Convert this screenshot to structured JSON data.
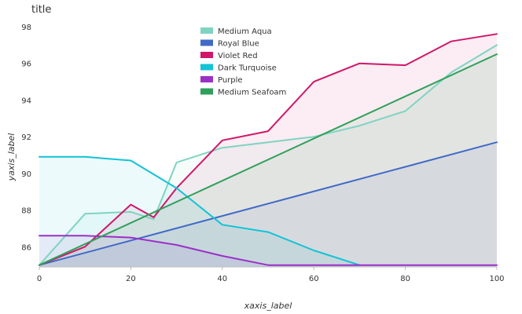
{
  "chart_data": {
    "type": "area",
    "title": "title",
    "xlabel": "xaxis_label",
    "ylabel": "yaxis_label",
    "xlim": [
      0,
      100
    ],
    "ylim": [
      84.9,
      98
    ],
    "x_ticks": [
      0,
      20,
      40,
      60,
      80,
      100
    ],
    "y_ticks": [
      86,
      88,
      90,
      92,
      94,
      96,
      98
    ],
    "grid": false,
    "legend_position": "top-center",
    "series": [
      {
        "name": "Medium Aqua",
        "color": "#7fd4c1",
        "x": [
          0,
          10,
          20,
          25,
          30,
          40,
          50,
          60,
          70,
          80,
          90,
          100
        ],
        "y": [
          85,
          87.8,
          87.9,
          87.5,
          90.6,
          91.4,
          91.7,
          92.0,
          92.6,
          93.4,
          95.5,
          97.0
        ]
      },
      {
        "name": "Royal Blue",
        "color": "#4169c7",
        "x": [
          0,
          100
        ],
        "y": [
          85,
          91.7
        ]
      },
      {
        "name": "Violet Red",
        "color": "#d0176a",
        "x": [
          0,
          10,
          20,
          25,
          30,
          40,
          50,
          60,
          70,
          80,
          90,
          100
        ],
        "y": [
          85,
          86.0,
          88.3,
          87.6,
          89.2,
          91.8,
          92.3,
          95.0,
          96.0,
          95.9,
          97.2,
          97.6
        ]
      },
      {
        "name": "Dark Turquoise",
        "color": "#12c3d6",
        "x": [
          0,
          10,
          20,
          30,
          40,
          50,
          60,
          70
        ],
        "y": [
          90.9,
          90.9,
          90.7,
          89.2,
          87.2,
          86.8,
          85.8,
          85
        ]
      },
      {
        "name": "Purple",
        "color": "#9b30c8",
        "x": [
          0,
          10,
          20,
          30,
          40,
          50,
          60,
          70,
          80,
          90,
          100
        ],
        "y": [
          86.6,
          86.6,
          86.5,
          86.1,
          85.5,
          85,
          85,
          85,
          85,
          85,
          85
        ]
      },
      {
        "name": "Medium Seafoam",
        "color": "#2fa05a",
        "x": [
          0,
          100
        ],
        "y": [
          85,
          96.5
        ]
      }
    ],
    "legend": [
      "Medium Aqua",
      "Royal Blue",
      "Violet Red",
      "Dark Turquoise",
      "Purple",
      "Medium Seafoam"
    ]
  }
}
